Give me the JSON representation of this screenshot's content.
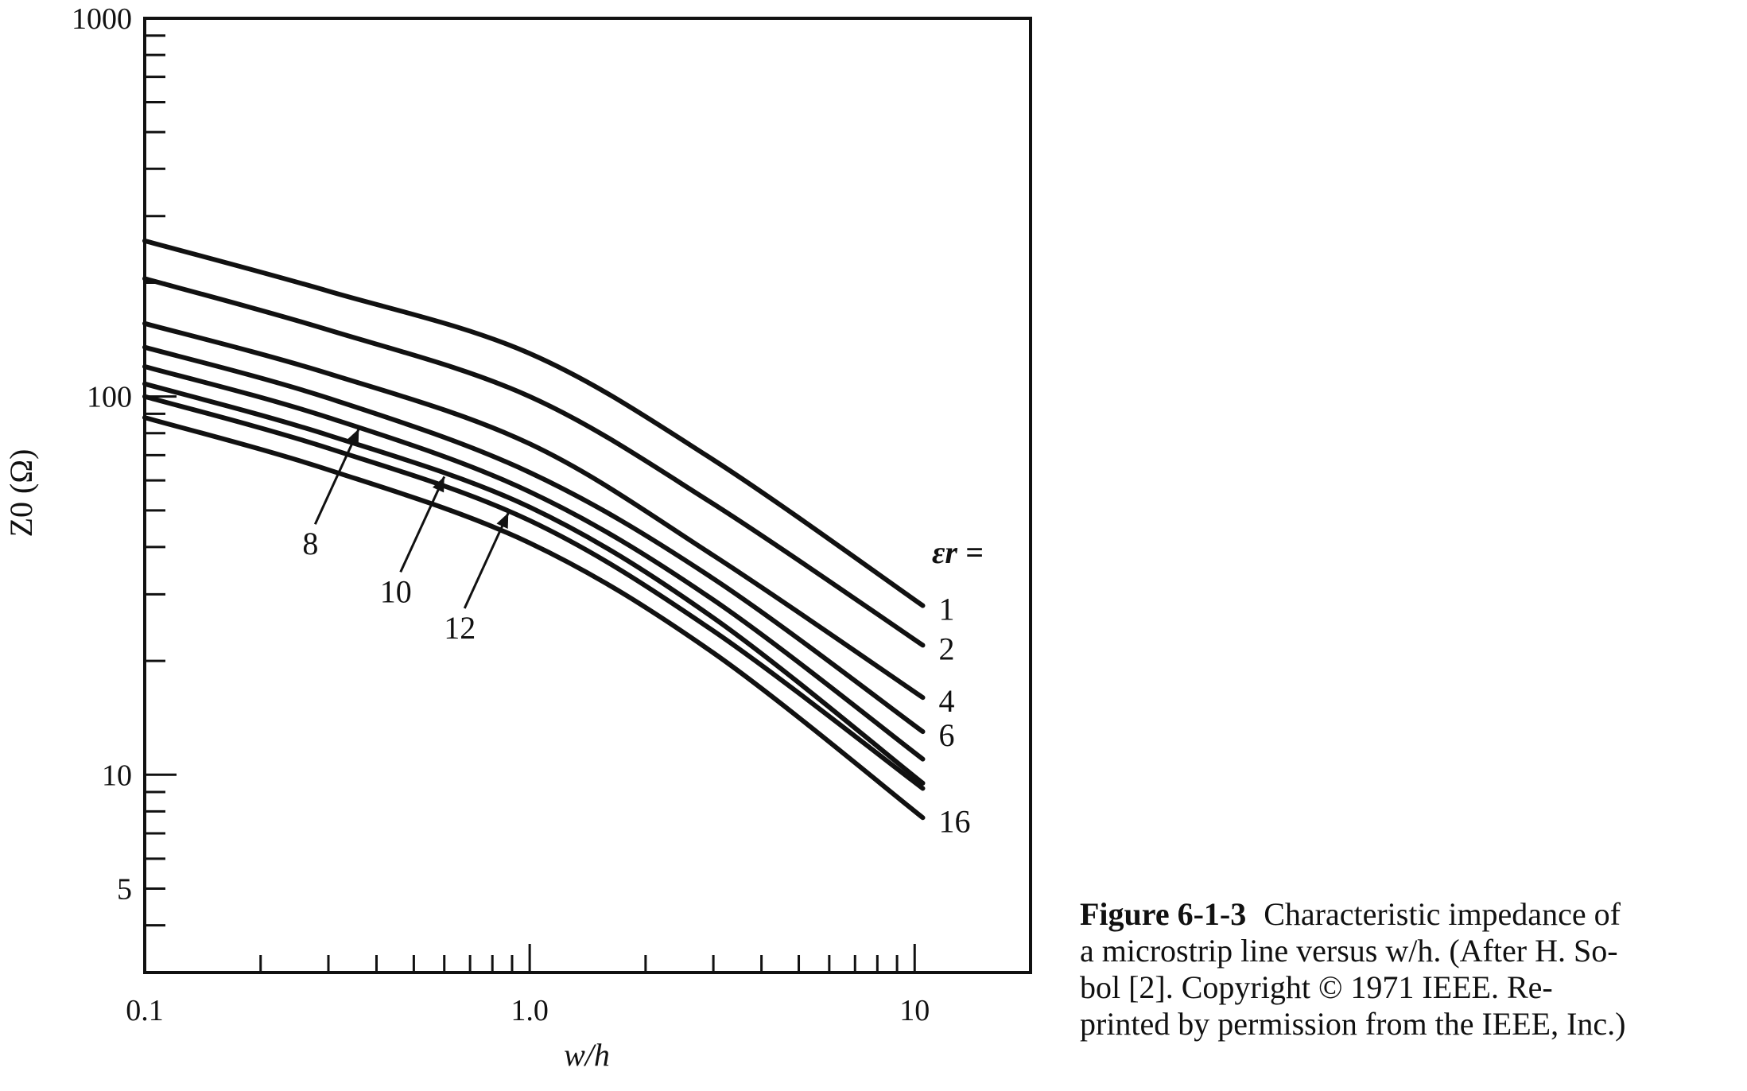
{
  "chart_data": {
    "type": "line",
    "title": "",
    "xlabel": "w/h",
    "ylabel": "Z0 (Ω)",
    "x_scale": "log",
    "y_scale": "log",
    "xlim": [
      0.1,
      20
    ],
    "ylim": [
      3,
      1000
    ],
    "x_ticks": [
      {
        "value": 0.1,
        "label": "0.1"
      },
      {
        "value": 1.0,
        "label": "1.0"
      },
      {
        "value": 10,
        "label": "10"
      }
    ],
    "y_ticks": [
      {
        "value": 1000,
        "label": "1000"
      },
      {
        "value": 100,
        "label": "100"
      },
      {
        "value": 10,
        "label": "10"
      },
      {
        "value": 5,
        "label": "5"
      }
    ],
    "legend_title": "εr =",
    "series": [
      {
        "name": "1",
        "x": [
          0.1,
          0.3,
          1.0,
          3.0,
          10.5
        ],
        "y": [
          258,
          190,
          130,
          68,
          28
        ]
      },
      {
        "name": "2",
        "x": [
          0.1,
          0.3,
          1.0,
          3.0,
          10.5
        ],
        "y": [
          205,
          150,
          100,
          52,
          22
        ]
      },
      {
        "name": "4",
        "x": [
          0.1,
          0.3,
          1.0,
          3.0,
          10.5
        ],
        "y": [
          156,
          115,
          75,
          38,
          16
        ]
      },
      {
        "name": "6",
        "x": [
          0.1,
          0.3,
          1.0,
          3.0,
          10.5
        ],
        "y": [
          135,
          99,
          63,
          33,
          13
        ]
      },
      {
        "name": "8",
        "x": [
          0.1,
          0.3,
          1.0,
          3.0,
          10.5
        ],
        "y": [
          120,
          88,
          56,
          29,
          11
        ]
      },
      {
        "name": "10",
        "x": [
          0.1,
          0.3,
          1.0,
          3.0,
          10.5
        ],
        "y": [
          108,
          79,
          51,
          26,
          9.5
        ]
      },
      {
        "name": "12",
        "x": [
          0.1,
          0.3,
          1.0,
          3.0,
          10.5
        ],
        "y": [
          100,
          73,
          47,
          24,
          9.2
        ]
      },
      {
        "name": "16",
        "x": [
          0.1,
          0.3,
          1.0,
          3.0,
          10.5
        ],
        "y": [
          88,
          64,
          41,
          21,
          7.7
        ]
      }
    ],
    "end_labels": [
      "1",
      "2",
      "4",
      "6",
      "16"
    ],
    "arrow_annotations": [
      {
        "label": "8",
        "series": "8",
        "x": 0.36
      },
      {
        "label": "10",
        "series": "10",
        "x": 0.6
      },
      {
        "label": "12",
        "series": "12",
        "x": 0.88
      }
    ]
  },
  "caption": {
    "figure_number": "Figure 6-1-3",
    "lines": [
      "Characteristic impedance of",
      "a microstrip line versus w/h. (After H. So-",
      "bol [2]. Copyright © 1971 IEEE. Re-",
      "printed by permission from the IEEE, Inc.)"
    ]
  },
  "colors": {
    "ink": "#111111",
    "paper": "#ffffff"
  }
}
